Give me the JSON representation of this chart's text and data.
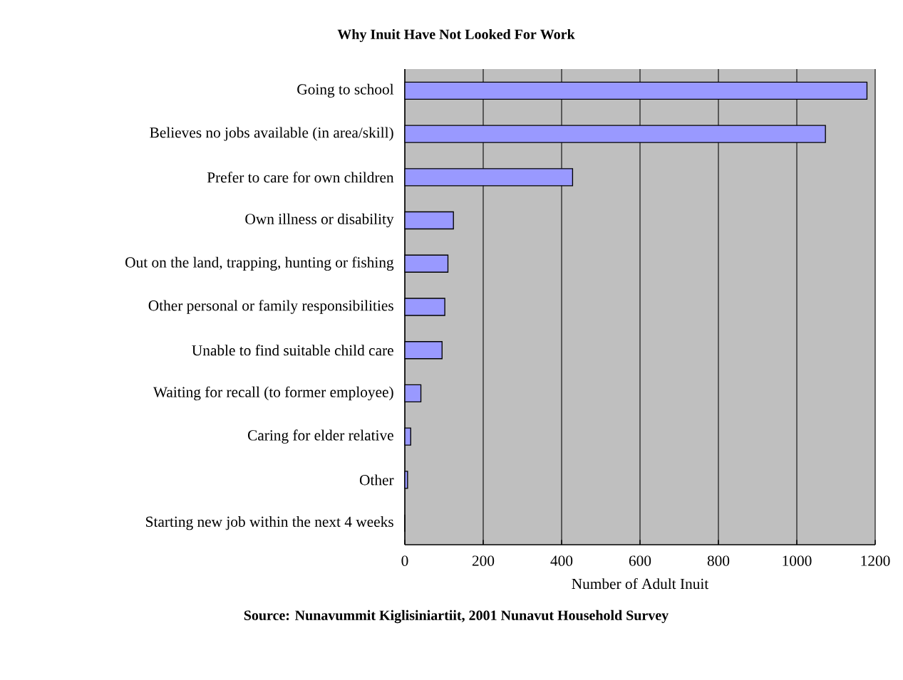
{
  "chart_data": {
    "type": "bar",
    "orientation": "horizontal",
    "title": "Why Inuit Have Not Looked For Work",
    "xlabel": "Number of Adult Inuit",
    "categories": [
      "Going to school",
      "Believes no jobs available (in area/skill)",
      "Prefer to care for own children",
      "Own illness or disability",
      "Out on the land, trapping, hunting or fishing",
      "Other personal or family responsibilities",
      "Unable to find suitable child care",
      "Waiting for recall (to former employee)",
      "Caring for elder relative",
      "Other",
      "Starting new job within the next 4 weeks"
    ],
    "values": [
      1179,
      1073,
      428,
      124,
      110,
      102,
      95,
      41,
      15,
      7,
      0
    ],
    "color": "#9999ff",
    "xlim": [
      0,
      1200
    ],
    "xticks": [
      0,
      200,
      400,
      600,
      800,
      1000,
      1200
    ],
    "grid": "x",
    "annotations": [
      "Source: Nunavummit Kiglisiniartiit, 2001 Nunavut Household Survey"
    ]
  }
}
